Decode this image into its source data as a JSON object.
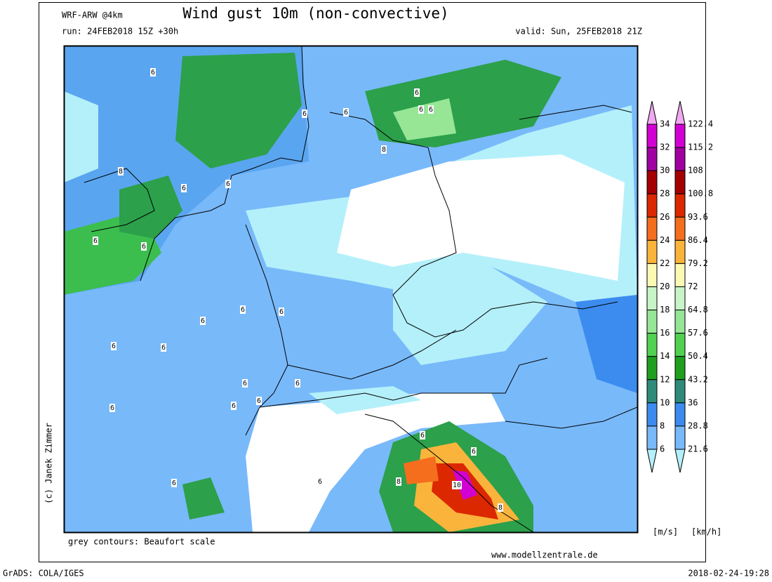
{
  "header": {
    "model": "WRF-ARW @4km",
    "title": "Wind gust 10m (non-convective)",
    "run": "run: 24FEB2018 15Z +30h",
    "valid": "valid: Sun, 25FEB2018 21Z"
  },
  "legend": {
    "ms": [
      "34",
      "32",
      "30",
      "28",
      "26",
      "24",
      "22",
      "20",
      "18",
      "16",
      "14",
      "12",
      "10",
      "8",
      "6"
    ],
    "kmh": [
      "122.4",
      "115.2",
      "108",
      "100.8",
      "93.6",
      "86.4",
      "79.2",
      "72",
      "64.8",
      "57.6",
      "50.4",
      "43.2",
      "36",
      "28.8",
      "21.6"
    ],
    "colors": [
      "#f0a8f0",
      "#d200d2",
      "#a000a0",
      "#a50000",
      "#dc2800",
      "#f56e1e",
      "#fab43c",
      "#fafab4",
      "#c8f5c8",
      "#96e696",
      "#50d250",
      "#1ea01e",
      "#2e8b7a",
      "#3c8cf0",
      "#78b9fa",
      "#96d2fa",
      "#b4f0fa"
    ],
    "unit_ms": "[m/s]",
    "unit_kmh": "[km/h]"
  },
  "map_labels": [
    "6",
    "6",
    "6",
    "6",
    "6",
    "6",
    "8",
    "8",
    "6",
    "6",
    "6",
    "6",
    "6",
    "6",
    "6",
    "6",
    "6",
    "6",
    "6",
    "6",
    "6",
    "6",
    "6",
    "6",
    "10",
    "8",
    "8",
    "6",
    "6"
  ],
  "credit": "(c) Janek Zimmer",
  "note": "grey contours: Beaufort scale",
  "website": "www.modellzentrale.de",
  "software": "GrADS: COLA/IGES",
  "timestamp": "2018-02-24-19:28"
}
